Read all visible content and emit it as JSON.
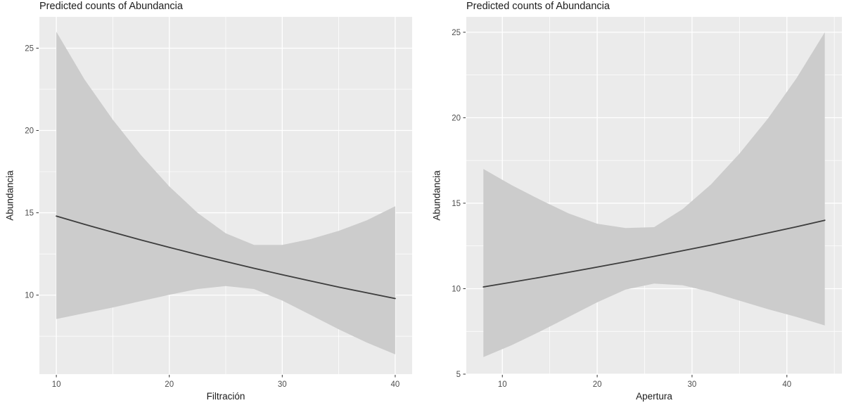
{
  "chart_data": [
    {
      "type": "line",
      "title": "Predicted counts of Abundancia",
      "xlabel": "Filtración",
      "ylabel": "Abundancia",
      "x": [
        10,
        12.5,
        15,
        17.5,
        20,
        22.5,
        25,
        27.5,
        30,
        32.5,
        35,
        37.5,
        40
      ],
      "series": [
        {
          "name": "predicted",
          "values": [
            14.8,
            14.3,
            13.82,
            13.35,
            12.9,
            12.46,
            12.04,
            11.63,
            11.24,
            10.86,
            10.49,
            10.14,
            9.79
          ]
        },
        {
          "name": "ci_upper",
          "values": [
            26.0,
            23.1,
            20.65,
            18.5,
            16.6,
            15.0,
            13.75,
            13.05,
            13.05,
            13.4,
            13.9,
            14.55,
            15.4
          ]
        },
        {
          "name": "ci_lower",
          "values": [
            8.55,
            8.9,
            9.25,
            9.64,
            10.02,
            10.37,
            10.55,
            10.37,
            9.67,
            8.8,
            7.92,
            7.11,
            6.4
          ]
        }
      ],
      "xlim": [
        8.5,
        41.5
      ],
      "ylim": [
        5.2,
        26.9
      ],
      "x_ticks": [
        10,
        20,
        30,
        40
      ],
      "x_minor_ticks": [
        15,
        25,
        35
      ],
      "y_ticks": [
        10,
        15,
        20,
        25
      ],
      "y_minor_ticks": [
        7.5,
        12.5,
        17.5,
        22.5
      ],
      "grid": true,
      "legend": "none"
    },
    {
      "type": "line",
      "title": "Predicted counts of Abundancia",
      "xlabel": "Apertura",
      "ylabel": "Abundancia",
      "x": [
        8,
        11,
        14,
        17,
        20,
        23,
        26,
        29,
        32,
        35,
        38,
        41,
        44
      ],
      "series": [
        {
          "name": "predicted",
          "values": [
            10.1,
            10.38,
            10.66,
            10.96,
            11.26,
            11.57,
            11.89,
            12.22,
            12.55,
            12.9,
            13.26,
            13.62,
            14.0
          ]
        },
        {
          "name": "ci_upper",
          "values": [
            17.0,
            16.05,
            15.2,
            14.4,
            13.8,
            13.55,
            13.6,
            14.65,
            16.1,
            17.9,
            19.95,
            22.3,
            25.0
          ]
        },
        {
          "name": "ci_lower",
          "values": [
            6.0,
            6.7,
            7.5,
            8.35,
            9.2,
            9.95,
            10.3,
            10.2,
            9.8,
            9.3,
            8.8,
            8.35,
            7.85
          ]
        }
      ],
      "xlim": [
        6.2,
        45.8
      ],
      "ylim": [
        5.0,
        25.9
      ],
      "x_ticks": [
        10,
        20,
        30,
        40
      ],
      "x_minor_ticks": [
        15,
        25,
        35,
        45
      ],
      "y_ticks": [
        5,
        10,
        15,
        20,
        25
      ],
      "y_minor_ticks": [
        7.5,
        12.5,
        17.5,
        22.5
      ],
      "grid": true,
      "legend": "none"
    }
  ],
  "colors": {
    "panel_bg": "#ebebeb",
    "grid": "#ffffff",
    "band": "#cccccc",
    "line": "#3d3d3d",
    "tick_mark": "#333333",
    "tick_label": "#4d4d4d",
    "text": "#1c1c1c"
  }
}
